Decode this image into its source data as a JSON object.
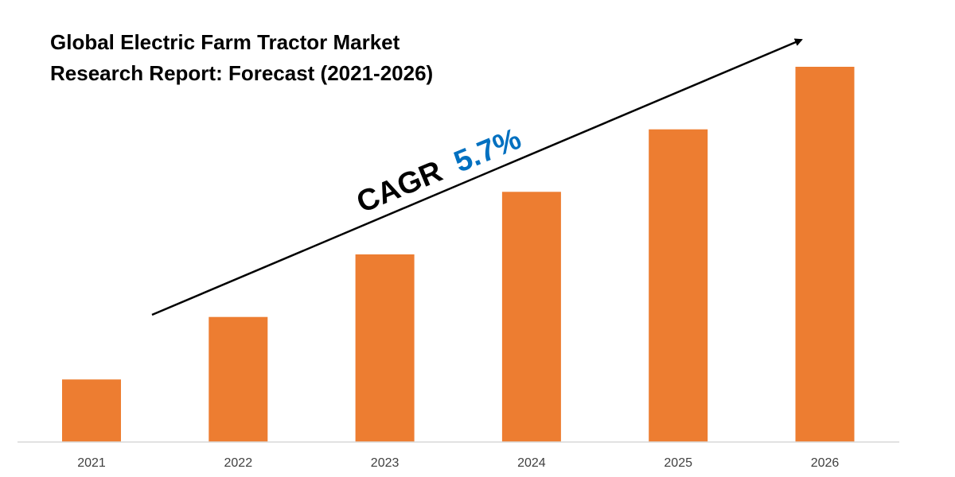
{
  "title_lines": [
    "Global Electric Farm Tractor Market",
    "Research Report: Forecast (2021-2026)"
  ],
  "annotation": {
    "prefix": "CAGR",
    "value": "5.7%"
  },
  "colors": {
    "bar": "#ED7D31",
    "cagr_value": "#0070C0",
    "text": "#000000",
    "tick": "#404040",
    "axis": "#D9D9D9"
  },
  "chart_data": {
    "type": "bar",
    "categories": [
      "2021",
      "2022",
      "2023",
      "2024",
      "2025",
      "2026"
    ],
    "values": [
      1.0,
      2.0,
      3.0,
      4.0,
      5.0,
      6.0
    ],
    "title": "Global Electric Farm Tractor Market Research Report: Forecast (2021-2026)",
    "xlabel": "",
    "ylabel": "",
    "ylim": [
      0,
      6.5
    ],
    "grid": false,
    "legend": "none",
    "trend_arrow": true
  }
}
